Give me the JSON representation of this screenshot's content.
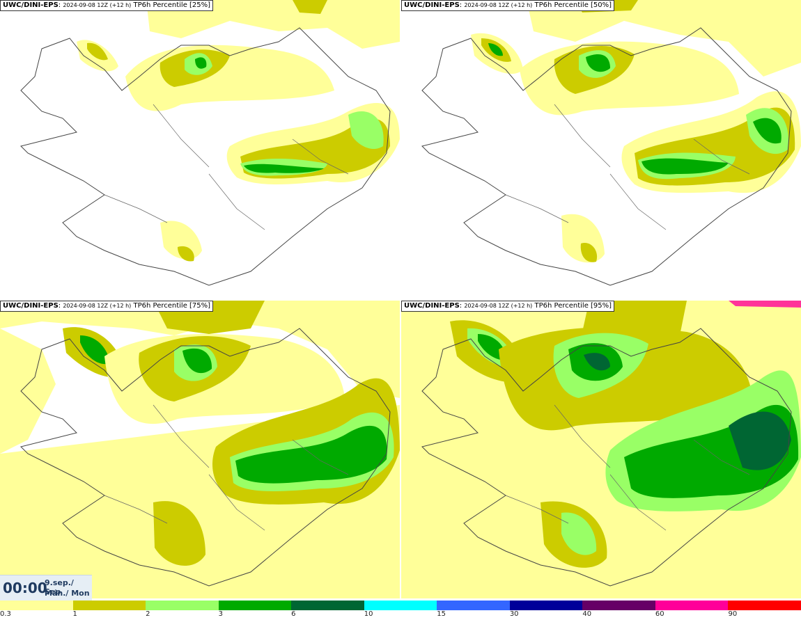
{
  "panels": [
    {
      "model": "UWC/DINI-EPS",
      "run": "2024-09-08 12Z (+12 h)",
      "product": "TP6h Percentile [25%]"
    },
    {
      "model": "UWC/DINI-EPS",
      "run": "2024-09-08 12Z (+12 h)",
      "product": "TP6h Percentile [50%]"
    },
    {
      "model": "UWC/DINI-EPS",
      "run": "2024-09-08 12Z (+12 h)",
      "product": "TP6h Percentile [75%]"
    },
    {
      "model": "UWC/DINI-EPS",
      "run": "2024-09-08 12Z (+12 h)",
      "product": "TP6h Percentile [95%]"
    }
  ],
  "valid_time": {
    "time": "00:00",
    "date": "9.sep./ Sep",
    "day": "Mán./ Mon"
  },
  "colorbar": {
    "ticks": [
      "0.3",
      "1",
      "2",
      "3",
      "6",
      "10",
      "15",
      "30",
      "40",
      "60",
      "90"
    ],
    "colors": [
      "#ffff99",
      "#cccc00",
      "#99ff66",
      "#00aa00",
      "#006633",
      "#00ffff",
      "#3366ff",
      "#000099",
      "#660066",
      "#ff0099",
      "#ff0000"
    ]
  },
  "palette": {
    "light": "#ffff99",
    "olive": "#cccc00",
    "lgreen": "#99ff66",
    "green": "#00aa00",
    "dgreen": "#006633",
    "cyan": "#00ffff",
    "coast": "#444444"
  }
}
